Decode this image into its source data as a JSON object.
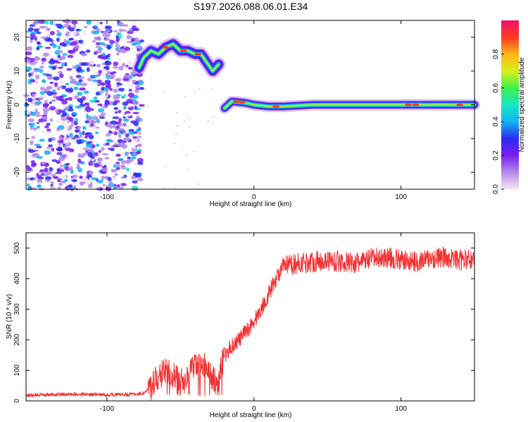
{
  "title": "S197.2026.088.06.01.E34",
  "chart_data": [
    {
      "type": "heatmap",
      "xlabel": "Height of straight line (km)",
      "ylabel": "Frequency (Hz)",
      "xlim": [
        -155,
        150
      ],
      "ylim": [
        -25,
        25
      ],
      "xticks": [
        -100,
        0,
        100
      ],
      "yticks": [
        -20,
        -10,
        0,
        10,
        20
      ],
      "colorbar": {
        "label": "Normalized spectral amplitude",
        "range": [
          0.0,
          1.0
        ],
        "ticks": [
          "0.0",
          "0.2",
          "0.4",
          "0.6",
          "0.8"
        ],
        "colors": [
          "#f4e6f7",
          "#b489e8",
          "#7a1ff0",
          "#2a2bf4",
          "#13b4f2",
          "#14e8c2",
          "#3ef04a",
          "#d9f01a",
          "#ffb319",
          "#ff3b1d",
          "#f0106e"
        ]
      },
      "features": [
        {
          "name": "noise region",
          "x_range": [
            -155,
            -76
          ],
          "f_range": [
            -25,
            25
          ],
          "amplitude": "0.05-0.45"
        },
        {
          "name": "upper trace",
          "points": [
            [
              -78,
              11
            ],
            [
              -75,
              14
            ],
            [
              -70,
              16
            ],
            [
              -65,
              15
            ],
            [
              -60,
              17
            ],
            [
              -55,
              18
            ],
            [
              -50,
              16
            ],
            [
              -45,
              16
            ],
            [
              -40,
              15
            ],
            [
              -36,
              15
            ],
            [
              -32,
              12.5
            ],
            [
              -28,
              10
            ],
            [
              -24,
              12
            ]
          ]
        },
        {
          "name": "lower trace",
          "points": [
            [
              -20,
              -1
            ],
            [
              -15,
              1
            ],
            [
              -10,
              0.8
            ],
            [
              -5,
              0.5
            ],
            [
              0,
              0
            ],
            [
              10,
              -0.5
            ],
            [
              20,
              -0.5
            ],
            [
              40,
              0
            ],
            [
              60,
              0
            ],
            [
              80,
              0
            ],
            [
              100,
              0
            ],
            [
              120,
              0
            ],
            [
              140,
              0
            ],
            [
              150,
              0
            ]
          ]
        }
      ]
    },
    {
      "type": "line",
      "xlabel": "Height of straight line (km)",
      "ylabel": "SNR (10 * v/v)",
      "xlim": [
        -155,
        150
      ],
      "ylim": [
        0,
        550
      ],
      "xticks": [
        -100,
        0,
        100
      ],
      "yticks": [
        0,
        100,
        200,
        300,
        400,
        500
      ],
      "color": "#f03232",
      "series": [
        {
          "x": [
            -155,
            -140,
            -120,
            -100,
            -80,
            -75,
            -70,
            -65,
            -60,
            -55,
            -50,
            -45,
            -40,
            -35,
            -30,
            -25,
            -20,
            -15,
            -10,
            -5,
            0,
            5,
            10,
            15,
            20,
            30,
            40,
            50,
            60,
            70,
            80,
            90,
            100,
            110,
            120,
            130,
            140,
            150
          ],
          "values": [
            18,
            20,
            22,
            20,
            22,
            25,
            45,
            80,
            100,
            85,
            60,
            90,
            110,
            120,
            90,
            60,
            150,
            180,
            200,
            230,
            260,
            300,
            350,
            400,
            440,
            450,
            455,
            460,
            455,
            450,
            465,
            470,
            460,
            455,
            465,
            470,
            460,
            465
          ]
        }
      ]
    }
  ]
}
